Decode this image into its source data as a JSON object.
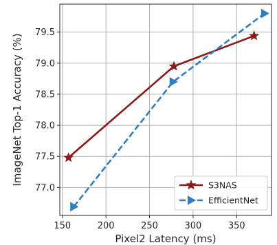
{
  "chart_data": {
    "type": "line",
    "title": "",
    "xlabel": "Pixel2 Latency (ms)",
    "ylabel": "ImageNet Top-1 Accuracy (%)",
    "xlim": [
      147,
      390
    ],
    "ylim": [
      76.55,
      79.95
    ],
    "xticks": [
      150,
      200,
      250,
      300,
      350
    ],
    "yticks": [
      77.0,
      77.5,
      78.0,
      78.5,
      79.0,
      79.5
    ],
    "grid": true,
    "legend_position": "lower-right",
    "series": [
      {
        "name": "S3NAS",
        "color": "#8b1a1a",
        "line_style": "solid",
        "marker": "star",
        "x": [
          157,
          278,
          370
        ],
        "y": [
          77.48,
          78.95,
          79.44
        ]
      },
      {
        "name": "EfficientNet",
        "color": "#2f7fbf",
        "line_style": "dashed",
        "marker": "triangle-right",
        "x": [
          163,
          277,
          382
        ],
        "y": [
          76.69,
          78.7,
          79.8
        ]
      }
    ]
  }
}
